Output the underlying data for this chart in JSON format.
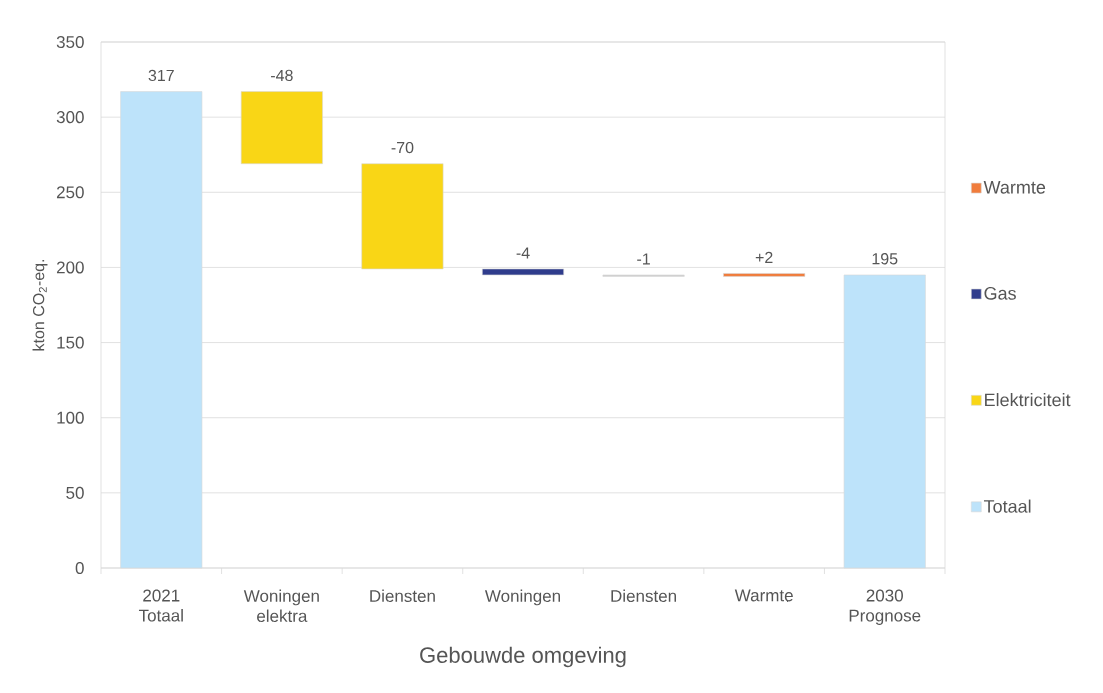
{
  "chart_data": {
    "type": "bar",
    "xlabel": "Gebouwde omgeving",
    "ylabel": "kton CO$_{2}$-eq.",
    "categories": [
      "2021 Totaal",
      "Woningen elektra",
      "Diensten",
      "Woningen",
      "Diensten",
      "Warmte",
      "2030 Prognose"
    ],
    "series": [
      {
        "name": "Totaal",
        "color": "#bde3fa",
        "values": [
          317,
          null,
          null,
          null,
          null,
          null,
          195
        ],
        "value_labels": [
          "317",
          null,
          null,
          null,
          null,
          null,
          "195"
        ]
      },
      {
        "name": "Elektriciteit",
        "color": "#f9d616",
        "values": [
          null,
          -48,
          -70,
          null,
          null,
          null,
          null
        ],
        "base": [
          null,
          317,
          269,
          null,
          null,
          null,
          null
        ],
        "value_labels": [
          null,
          "-48",
          "-70",
          null,
          null,
          null,
          null
        ]
      },
      {
        "name": "Gas",
        "color": "#2f3c8c",
        "values": [
          null,
          null,
          null,
          -4,
          null,
          null,
          null
        ],
        "base": [
          null,
          null,
          null,
          199,
          null,
          null,
          null
        ],
        "value_labels": [
          null,
          null,
          null,
          "-4",
          null,
          null,
          null
        ]
      },
      {
        "color": "#cfcfcf",
        "values": [
          null,
          null,
          null,
          null,
          -1,
          null,
          null
        ],
        "base": [
          null,
          null,
          null,
          null,
          195,
          null,
          null
        ],
        "value_labels": [
          null,
          null,
          null,
          null,
          "-1",
          null,
          null
        ]
      },
      {
        "name": "Warmte",
        "color": "#f07c3c",
        "values": [
          null,
          null,
          null,
          null,
          null,
          2,
          null
        ],
        "base": [
          null,
          null,
          null,
          null,
          null,
          194,
          null
        ],
        "value_labels": [
          null,
          null,
          null,
          null,
          null,
          "+2",
          null
        ]
      }
    ],
    "ylim": [
      0,
      350
    ],
    "yticks": [
      0,
      50,
      100,
      150,
      200,
      250,
      300,
      350
    ],
    "grid": "y",
    "legend": "right"
  }
}
